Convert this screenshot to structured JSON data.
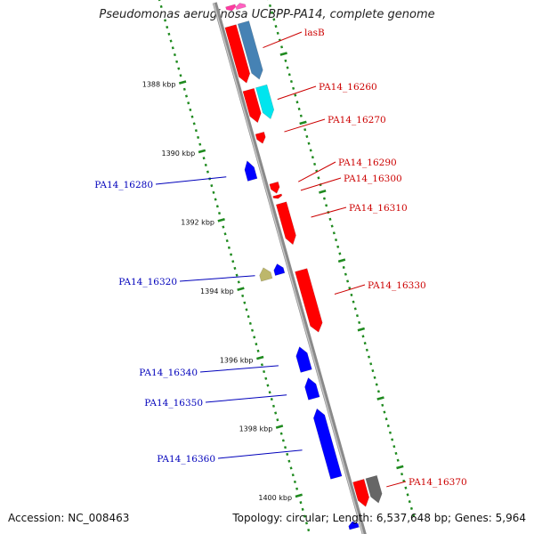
{
  "header": {
    "title": "Pseudomonas aeruginosa UCBPP-PA14, complete genome"
  },
  "footer": {
    "accession": "Accession: NC_008463",
    "summary": "Topology: circular; Length: 6,537,648 bp; Genes: 5,964"
  },
  "colors": {
    "forward_label": "#cc0000",
    "reverse_label": "#0000bb",
    "backbone": "#8a8a8a",
    "tick": "#1f8a1f"
  },
  "ticks": [
    {
      "kbp": 1388,
      "label": "1388 kbp"
    },
    {
      "kbp": 1390,
      "label": "1390 kbp"
    },
    {
      "kbp": 1392,
      "label": "1392 kbp"
    },
    {
      "kbp": 1394,
      "label": "1394 kbp"
    },
    {
      "kbp": 1396,
      "label": "1396 kbp"
    },
    {
      "kbp": 1398,
      "label": "1398 kbp"
    },
    {
      "kbp": 1400,
      "label": "1400 kbp"
    }
  ],
  "genes": [
    {
      "id": "g-top-1",
      "label": "",
      "strand": "+",
      "color": "#ff3aa0",
      "start": 1386.3,
      "end": 1386.45
    },
    {
      "id": "g-top-2",
      "label": "",
      "strand": "-",
      "color": "#ff60c0",
      "start": 1386.3,
      "end": 1386.45
    },
    {
      "id": "lasB",
      "label": "lasB",
      "strand": "+",
      "color": "#ff0000",
      "start": 1386.85,
      "end": 1388.5
    },
    {
      "id": "g-lasB-partner",
      "label": "",
      "strand": "+",
      "color": "#4682b4",
      "start": 1386.85,
      "end": 1388.5
    },
    {
      "id": "PA14_16260",
      "label": "PA14_16260",
      "strand": "+",
      "color": "#ff0000",
      "start": 1388.7,
      "end": 1389.65
    },
    {
      "id": "g-16260-partner",
      "label": "",
      "strand": "+",
      "color": "#00e5ee",
      "start": 1388.7,
      "end": 1389.65
    },
    {
      "id": "PA14_16270",
      "label": "PA14_16270",
      "strand": "+",
      "color": "#ff0000",
      "start": 1389.95,
      "end": 1390.25
    },
    {
      "id": "PA14_16280",
      "label": "PA14_16280",
      "strand": "-",
      "color": "#0000ff",
      "start": 1390.6,
      "end": 1391.15
    },
    {
      "id": "PA14_16290",
      "label": "PA14_16290",
      "strand": "+",
      "color": "#ff0000",
      "start": 1391.4,
      "end": 1391.7
    },
    {
      "id": "PA14_16300",
      "label": "PA14_16300",
      "strand": "+",
      "color": "#ff0000",
      "start": 1391.75,
      "end": 1391.85
    },
    {
      "id": "PA14_16310",
      "label": "PA14_16310",
      "strand": "+",
      "color": "#ff0000",
      "start": 1392.0,
      "end": 1393.2
    },
    {
      "id": "g-16320-partner",
      "label": "",
      "strand": "-",
      "color": "#bdb76b",
      "start": 1393.6,
      "end": 1393.95
    },
    {
      "id": "PA14_16320",
      "label": "PA14_16320",
      "strand": "-",
      "color": "#0000ff",
      "start": 1393.6,
      "end": 1393.9
    },
    {
      "id": "PA14_16330",
      "label": "PA14_16330",
      "strand": "+",
      "color": "#ff0000",
      "start": 1393.95,
      "end": 1395.75
    },
    {
      "id": "PA14_16340",
      "label": "PA14_16340",
      "strand": "-",
      "color": "#0000ff",
      "start": 1396.0,
      "end": 1396.7
    },
    {
      "id": "PA14_16350",
      "label": "PA14_16350",
      "strand": "-",
      "color": "#0000ff",
      "start": 1396.9,
      "end": 1397.5
    },
    {
      "id": "PA14_16360",
      "label": "PA14_16360",
      "strand": "-",
      "color": "#0000ff",
      "start": 1397.8,
      "end": 1399.8
    },
    {
      "id": "PA14_16370",
      "label": "PA14_16370",
      "strand": "+",
      "color": "#ff0000",
      "start": 1400.05,
      "end": 1400.8
    },
    {
      "id": "g-16370-partner",
      "label": "",
      "strand": "+",
      "color": "#666666",
      "start": 1400.05,
      "end": 1400.8
    },
    {
      "id": "g-bottom",
      "label": "",
      "strand": "-",
      "color": "#0000ff",
      "start": 1401.1,
      "end": 1401.3
    }
  ]
}
